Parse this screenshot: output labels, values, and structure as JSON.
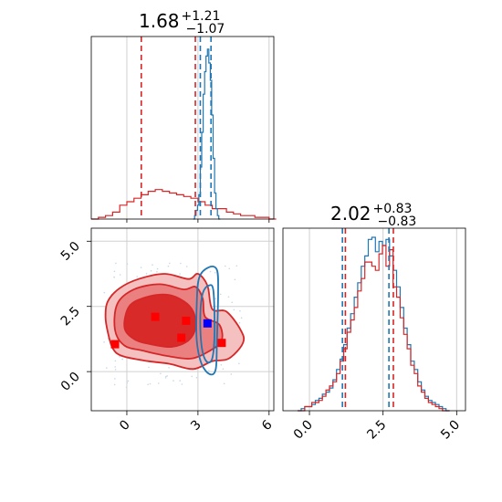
{
  "colors": {
    "red": "#d62728",
    "blue": "#1f77b4",
    "marker_red": "#ff0000",
    "marker_blue": "#0000ff",
    "fill_light": "#f4c0c0",
    "fill_mid": "#ea8080",
    "fill_dark": "#d92a2a",
    "grid": "#d0d0d0"
  },
  "chart_data": [
    {
      "type": "area",
      "panel": "top-left",
      "title": {
        "value": "1.68",
        "upper": "+1.21",
        "lower": "−1.07"
      },
      "xlim": [
        -1.5,
        6.2
      ],
      "grid": true,
      "series": [
        {
          "color": "#d62728",
          "bin_width": 0.3,
          "bins_start": -1.5,
          "heights": [
            0.0,
            0.01,
            0.02,
            0.04,
            0.08,
            0.1,
            0.12,
            0.14,
            0.16,
            0.17,
            0.16,
            0.15,
            0.14,
            0.13,
            0.12,
            0.1,
            0.08,
            0.06,
            0.06,
            0.04,
            0.03,
            0.02,
            0.02,
            0.01,
            0.01,
            0.0
          ],
          "quantiles": [
            0.61,
            2.89
          ]
        },
        {
          "color": "#1f77b4",
          "bin_width": 0.06,
          "bins_start": 2.8,
          "heights": [
            0.0,
            0.02,
            0.05,
            0.08,
            0.14,
            0.3,
            0.5,
            0.72,
            0.85,
            0.94,
            0.98,
            0.9,
            0.8,
            0.6,
            0.35,
            0.15,
            0.06,
            0.02,
            0.0
          ],
          "quantiles": [
            3.1,
            3.55
          ]
        }
      ]
    },
    {
      "type": "area",
      "panel": "bottom-right",
      "title": {
        "value": "2.02",
        "upper": "+0.83",
        "lower": "−0.83"
      },
      "xlim": [
        -0.9,
        5.3
      ],
      "xticks": [
        "0.0",
        "2.5",
        "5.0"
      ],
      "grid": true,
      "series": [
        {
          "color": "#1f77b4",
          "bin_width": 0.12,
          "bins_start": -0.4,
          "heights": [
            0.0,
            0.01,
            0.02,
            0.02,
            0.03,
            0.05,
            0.06,
            0.08,
            0.09,
            0.11,
            0.15,
            0.2,
            0.25,
            0.32,
            0.4,
            0.47,
            0.55,
            0.62,
            0.7,
            0.75,
            0.83,
            0.84,
            0.77,
            0.82,
            0.8,
            0.83,
            0.75,
            0.68,
            0.6,
            0.5,
            0.4,
            0.32,
            0.24,
            0.2,
            0.14,
            0.1,
            0.07,
            0.05,
            0.04,
            0.03,
            0.02,
            0.01,
            0.0
          ],
          "quantiles": [
            1.12,
            2.7
          ]
        },
        {
          "color": "#d62728",
          "bin_width": 0.12,
          "bins_start": -0.4,
          "heights": [
            0.0,
            0.0,
            0.02,
            0.02,
            0.04,
            0.04,
            0.05,
            0.07,
            0.1,
            0.12,
            0.14,
            0.18,
            0.24,
            0.3,
            0.38,
            0.44,
            0.5,
            0.58,
            0.64,
            0.72,
            0.72,
            0.7,
            0.68,
            0.76,
            0.8,
            0.7,
            0.78,
            0.6,
            0.55,
            0.45,
            0.37,
            0.3,
            0.22,
            0.18,
            0.12,
            0.09,
            0.06,
            0.04,
            0.03,
            0.02,
            0.01,
            0.0,
            0.0
          ],
          "quantiles": [
            1.22,
            2.85
          ]
        }
      ]
    },
    {
      "type": "scatter",
      "panel": "bottom-left",
      "xlim": [
        -1.5,
        6.2
      ],
      "ylim": [
        -1.5,
        5.5
      ],
      "xticks": [
        "0",
        "3",
        "6"
      ],
      "yticks": [
        "0.0",
        "2.5",
        "5.0"
      ],
      "grid": true,
      "red_contours": {
        "light": [
          [
            -0.8,
            2.7
          ],
          [
            -0.3,
            3.2
          ],
          [
            0.5,
            3.55
          ],
          [
            1.6,
            3.75
          ],
          [
            2.6,
            3.55
          ],
          [
            3.0,
            3.75
          ],
          [
            3.4,
            3.3
          ],
          [
            3.6,
            2.4
          ],
          [
            4.2,
            2.3
          ],
          [
            4.8,
            1.6
          ],
          [
            4.9,
            1.1
          ],
          [
            4.3,
            0.5
          ],
          [
            3.6,
            0.4
          ],
          [
            2.8,
            0.1
          ],
          [
            1.8,
            0.3
          ],
          [
            0.9,
            0.4
          ],
          [
            -0.2,
            0.6
          ],
          [
            -0.6,
            0.9
          ],
          [
            -0.8,
            1.5
          ],
          [
            -0.9,
            2.1
          ]
        ],
        "mid": [
          [
            -0.4,
            2.6
          ],
          [
            0.3,
            3.15
          ],
          [
            1.4,
            3.35
          ],
          [
            2.4,
            3.15
          ],
          [
            2.9,
            3.25
          ],
          [
            3.2,
            2.8
          ],
          [
            3.3,
            2.1
          ],
          [
            3.9,
            1.8
          ],
          [
            4.0,
            1.2
          ],
          [
            3.5,
            0.8
          ],
          [
            2.7,
            0.5
          ],
          [
            1.7,
            0.6
          ],
          [
            0.7,
            0.8
          ],
          [
            -0.1,
            1.0
          ],
          [
            -0.5,
            1.6
          ]
        ],
        "dark": [
          [
            0.1,
            2.5
          ],
          [
            0.8,
            2.85
          ],
          [
            1.7,
            2.95
          ],
          [
            2.4,
            2.7
          ],
          [
            2.8,
            2.3
          ],
          [
            2.9,
            1.7
          ],
          [
            2.6,
            1.2
          ],
          [
            1.9,
            0.95
          ],
          [
            1.0,
            1.05
          ],
          [
            0.3,
            1.25
          ],
          [
            -0.1,
            1.7
          ]
        ]
      },
      "blue_contours": {
        "outer": [
          [
            3.05,
            3.6
          ],
          [
            3.45,
            4.0
          ],
          [
            3.8,
            3.9
          ],
          [
            3.85,
            3.0
          ],
          [
            3.8,
            1.2
          ],
          [
            3.75,
            0.1
          ],
          [
            3.5,
            -0.1
          ],
          [
            3.15,
            0.3
          ],
          [
            2.95,
            1.2
          ],
          [
            2.95,
            2.6
          ]
        ],
        "inner": [
          [
            3.2,
            3.0
          ],
          [
            3.45,
            3.3
          ],
          [
            3.65,
            3.1
          ],
          [
            3.7,
            1.5
          ],
          [
            3.6,
            0.5
          ],
          [
            3.35,
            0.4
          ],
          [
            3.15,
            1.0
          ],
          [
            3.1,
            2.2
          ]
        ]
      },
      "markers": [
        {
          "x": -0.5,
          "y": 1.05,
          "color": "#ff0000"
        },
        {
          "x": 1.2,
          "y": 2.1,
          "color": "#ff0000"
        },
        {
          "x": 2.5,
          "y": 1.95,
          "color": "#ff0000"
        },
        {
          "x": 2.3,
          "y": 1.3,
          "color": "#ff0000"
        },
        {
          "x": 4.0,
          "y": 1.1,
          "color": "#ff0000"
        },
        {
          "x": 3.4,
          "y": 1.85,
          "color": "#0000ff"
        }
      ]
    }
  ]
}
